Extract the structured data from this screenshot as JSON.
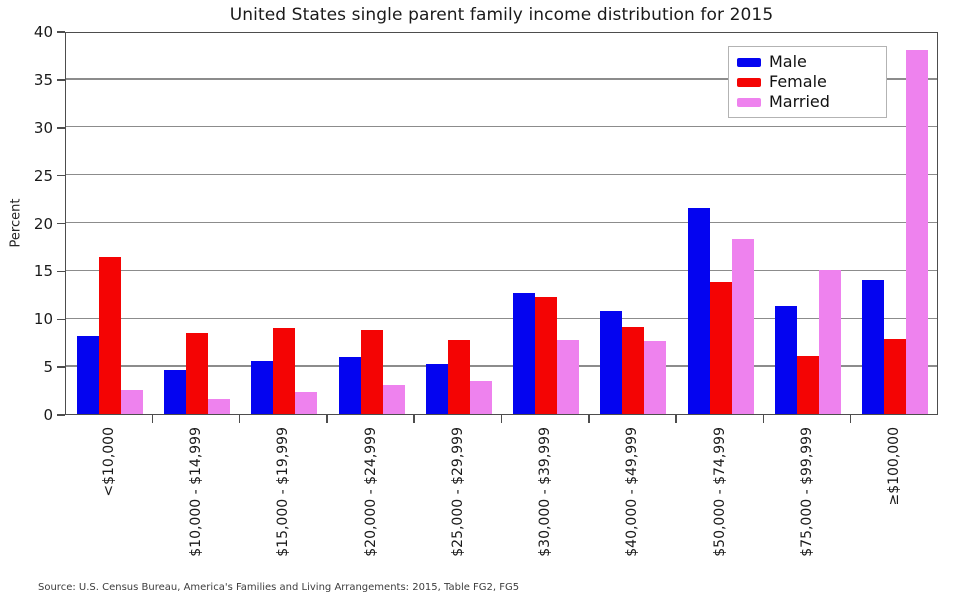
{
  "title": "United States single parent family income distribution for 2015",
  "source_note": "Source: U.S. Census Bureau, America's Families and Living Arrangements: 2015, Table FG2, FG5",
  "colors": {
    "male": "#0404f0",
    "female": "#f40404",
    "married": "#ee82ee",
    "gridline": "#8c8c8c",
    "frame": "#4d4d4d"
  },
  "chart_data": {
    "type": "bar",
    "title": "United States single parent family income distribution for 2015",
    "xlabel": "",
    "ylabel": "Percent",
    "ylim": [
      0,
      40
    ],
    "ytick_step": 5,
    "grid": "horizontal",
    "legend_position": "top-right-inside",
    "categories": [
      "<$10,000",
      "$10,000 - $14,999",
      "$15,000 - $19,999",
      "$20,000 - $24,999",
      "$25,000 - $29,999",
      "$30,000 - $39,999",
      "$40,000 - $49,999",
      "$50,000 - $74,999",
      "$75,000 - $99,999",
      "≥$100,000"
    ],
    "series": [
      {
        "name": "Male",
        "color": "#0404f0",
        "values": [
          8.1,
          4.6,
          5.5,
          6.0,
          5.2,
          12.6,
          10.8,
          21.5,
          11.3,
          14.0
        ]
      },
      {
        "name": "Female",
        "color": "#f40404",
        "values": [
          16.4,
          8.5,
          9.0,
          8.8,
          7.7,
          12.2,
          9.1,
          13.8,
          6.1,
          7.8
        ]
      },
      {
        "name": "Married",
        "color": "#ee82ee",
        "values": [
          2.5,
          1.6,
          2.3,
          3.0,
          3.5,
          7.7,
          7.6,
          18.3,
          15.0,
          38.0
        ]
      }
    ]
  }
}
